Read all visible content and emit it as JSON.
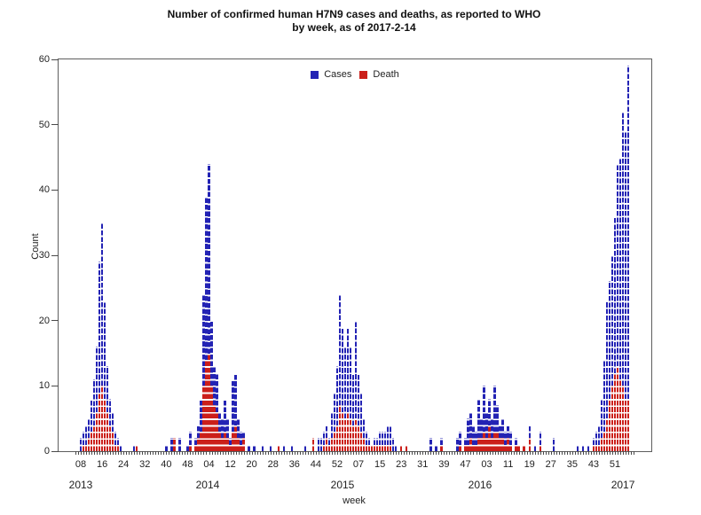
{
  "title": {
    "line1": "Number of confirmed human H7N9 cases and deaths, as reported to WHO",
    "line2": "by week, as of 2017-2-14"
  },
  "legend": {
    "items": [
      {
        "label": "Cases",
        "color": "#2323b4"
      },
      {
        "label": "Death",
        "color": "#cb1f1a"
      }
    ]
  },
  "colors": {
    "cases": "#2323b4",
    "deaths": "#cb1f1a",
    "frame": "#5e5e5e"
  },
  "chart_data": {
    "type": "bar",
    "stacked": true,
    "title": "Number of confirmed human H7N9 cases and deaths, as reported to WHO by week, as of 2017-2-14",
    "xlabel": "week",
    "ylabel": "Count",
    "ylim": [
      0,
      60
    ],
    "grid": false,
    "legend_position": "top-center",
    "unit": "1 box = 1 person; bar height = weekly confirmed cases, red bottom portion = deaths",
    "y_axis": {
      "label": "Count",
      "ticks": [
        0,
        10,
        20,
        30,
        40,
        50,
        60
      ]
    },
    "x_axis": {
      "label": "week",
      "first_week": "2013-06",
      "last_week": "2017-07",
      "ticks": [
        {
          "i": 2,
          "label": "08"
        },
        {
          "i": 10,
          "label": "16"
        },
        {
          "i": 18,
          "label": "24"
        },
        {
          "i": 26,
          "label": "32"
        },
        {
          "i": 34,
          "label": "40"
        },
        {
          "i": 42,
          "label": "48"
        },
        {
          "i": 50,
          "label": "04"
        },
        {
          "i": 58,
          "label": "12"
        },
        {
          "i": 66,
          "label": "20"
        },
        {
          "i": 74,
          "label": "28"
        },
        {
          "i": 82,
          "label": "36"
        },
        {
          "i": 90,
          "label": "44"
        },
        {
          "i": 98,
          "label": "52"
        },
        {
          "i": 106,
          "label": "07"
        },
        {
          "i": 114,
          "label": "15"
        },
        {
          "i": 122,
          "label": "23"
        },
        {
          "i": 130,
          "label": "31"
        },
        {
          "i": 138,
          "label": "39"
        },
        {
          "i": 146,
          "label": "47"
        },
        {
          "i": 154,
          "label": "03"
        },
        {
          "i": 162,
          "label": "11"
        },
        {
          "i": 170,
          "label": "19"
        },
        {
          "i": 178,
          "label": "27"
        },
        {
          "i": 186,
          "label": "35"
        },
        {
          "i": 194,
          "label": "43"
        },
        {
          "i": 202,
          "label": "51"
        }
      ],
      "years": [
        {
          "label": "2013",
          "week_index": 2
        },
        {
          "label": "2014",
          "week_index": 49.5
        },
        {
          "label": "2015",
          "week_index": 100
        },
        {
          "label": "2016",
          "week_index": 151.5
        },
        {
          "label": "2017",
          "week_index": 205
        }
      ]
    },
    "weeks": [
      {
        "week": "2013-08",
        "cases": 2,
        "deaths": 0
      },
      {
        "week": "2013-09",
        "cases": 3,
        "deaths": 1
      },
      {
        "week": "2013-10",
        "cases": 4,
        "deaths": 1
      },
      {
        "week": "2013-11",
        "cases": 5,
        "deaths": 2
      },
      {
        "week": "2013-12",
        "cases": 8,
        "deaths": 3
      },
      {
        "week": "2013-13",
        "cases": 11,
        "deaths": 4
      },
      {
        "week": "2013-14",
        "cases": 16,
        "deaths": 6
      },
      {
        "week": "2013-15",
        "cases": 29,
        "deaths": 9
      },
      {
        "week": "2013-16",
        "cases": 35,
        "deaths": 10
      },
      {
        "week": "2013-17",
        "cases": 23,
        "deaths": 8
      },
      {
        "week": "2013-18",
        "cases": 13,
        "deaths": 6
      },
      {
        "week": "2013-19",
        "cases": 8,
        "deaths": 4
      },
      {
        "week": "2013-20",
        "cases": 6,
        "deaths": 3
      },
      {
        "week": "2013-21",
        "cases": 3,
        "deaths": 1
      },
      {
        "week": "2013-22",
        "cases": 2,
        "deaths": 1
      },
      {
        "week": "2013-23",
        "cases": 1,
        "deaths": 0
      },
      {
        "week": "2013-28",
        "cases": 1,
        "deaths": 0
      },
      {
        "week": "2013-29",
        "cases": 1,
        "deaths": 1
      },
      {
        "week": "2013-40",
        "cases": 1,
        "deaths": 0
      },
      {
        "week": "2013-42",
        "cases": 2,
        "deaths": 0
      },
      {
        "week": "2013-43",
        "cases": 2,
        "deaths": 2
      },
      {
        "week": "2013-45",
        "cases": 2,
        "deaths": 0
      },
      {
        "week": "2013-48",
        "cases": 1,
        "deaths": 0
      },
      {
        "week": "2013-49",
        "cases": 3,
        "deaths": 1
      },
      {
        "week": "2013-51",
        "cases": 2,
        "deaths": 1
      },
      {
        "week": "2013-52",
        "cases": 4,
        "deaths": 2
      },
      {
        "week": "2014-01",
        "cases": 8,
        "deaths": 3
      },
      {
        "week": "2014-02",
        "cases": 24,
        "deaths": 10
      },
      {
        "week": "2014-03",
        "cases": 39,
        "deaths": 14
      },
      {
        "week": "2014-04",
        "cases": 44,
        "deaths": 15
      },
      {
        "week": "2014-05",
        "cases": 20,
        "deaths": 10
      },
      {
        "week": "2014-06",
        "cases": 13,
        "deaths": 7
      },
      {
        "week": "2014-07",
        "cases": 12,
        "deaths": 6
      },
      {
        "week": "2014-08",
        "cases": 6,
        "deaths": 3
      },
      {
        "week": "2014-09",
        "cases": 5,
        "deaths": 2
      },
      {
        "week": "2014-10",
        "cases": 8,
        "deaths": 3
      },
      {
        "week": "2014-11",
        "cases": 5,
        "deaths": 2
      },
      {
        "week": "2014-12",
        "cases": 2,
        "deaths": 1
      },
      {
        "week": "2014-13",
        "cases": 11,
        "deaths": 3
      },
      {
        "week": "2014-14",
        "cases": 12,
        "deaths": 4
      },
      {
        "week": "2014-15",
        "cases": 5,
        "deaths": 2
      },
      {
        "week": "2014-16",
        "cases": 3,
        "deaths": 1
      },
      {
        "week": "2014-17",
        "cases": 3,
        "deaths": 2
      },
      {
        "week": "2014-19",
        "cases": 1,
        "deaths": 0
      },
      {
        "week": "2014-21",
        "cases": 1,
        "deaths": 0
      },
      {
        "week": "2014-24",
        "cases": 1,
        "deaths": 0
      },
      {
        "week": "2014-27",
        "cases": 1,
        "deaths": 0
      },
      {
        "week": "2014-30",
        "cases": 1,
        "deaths": 1
      },
      {
        "week": "2014-32",
        "cases": 1,
        "deaths": 0
      },
      {
        "week": "2014-35",
        "cases": 1,
        "deaths": 0
      },
      {
        "week": "2014-40",
        "cases": 1,
        "deaths": 0
      },
      {
        "week": "2014-43",
        "cases": 2,
        "deaths": 2
      },
      {
        "week": "2014-45",
        "cases": 2,
        "deaths": 0
      },
      {
        "week": "2014-46",
        "cases": 2,
        "deaths": 0
      },
      {
        "week": "2014-47",
        "cases": 3,
        "deaths": 1
      },
      {
        "week": "2014-48",
        "cases": 4,
        "deaths": 2
      },
      {
        "week": "2014-49",
        "cases": 2,
        "deaths": 1
      },
      {
        "week": "2014-50",
        "cases": 6,
        "deaths": 2
      },
      {
        "week": "2014-51",
        "cases": 9,
        "deaths": 3
      },
      {
        "week": "2014-52",
        "cases": 13,
        "deaths": 4
      },
      {
        "week": "2015-01",
        "cases": 24,
        "deaths": 7
      },
      {
        "week": "2015-02",
        "cases": 19,
        "deaths": 6
      },
      {
        "week": "2015-03",
        "cases": 16,
        "deaths": 5
      },
      {
        "week": "2015-04",
        "cases": 19,
        "deaths": 6
      },
      {
        "week": "2015-05",
        "cases": 16,
        "deaths": 5
      },
      {
        "week": "2015-06",
        "cases": 12,
        "deaths": 4
      },
      {
        "week": "2015-07",
        "cases": 20,
        "deaths": 5
      },
      {
        "week": "2015-08",
        "cases": 12,
        "deaths": 4
      },
      {
        "week": "2015-09",
        "cases": 9,
        "deaths": 3
      },
      {
        "week": "2015-10",
        "cases": 5,
        "deaths": 2
      },
      {
        "week": "2015-11",
        "cases": 3,
        "deaths": 1
      },
      {
        "week": "2015-12",
        "cases": 2,
        "deaths": 1
      },
      {
        "week": "2015-13",
        "cases": 1,
        "deaths": 1
      },
      {
        "week": "2015-14",
        "cases": 2,
        "deaths": 1
      },
      {
        "week": "2015-15",
        "cases": 2,
        "deaths": 1
      },
      {
        "week": "2015-16",
        "cases": 3,
        "deaths": 1
      },
      {
        "week": "2015-17",
        "cases": 3,
        "deaths": 1
      },
      {
        "week": "2015-18",
        "cases": 3,
        "deaths": 1
      },
      {
        "week": "2015-19",
        "cases": 4,
        "deaths": 1
      },
      {
        "week": "2015-20",
        "cases": 4,
        "deaths": 1
      },
      {
        "week": "2015-21",
        "cases": 2,
        "deaths": 0
      },
      {
        "week": "2015-22",
        "cases": 1,
        "deaths": 0
      },
      {
        "week": "2015-24",
        "cases": 1,
        "deaths": 1
      },
      {
        "week": "2015-26",
        "cases": 1,
        "deaths": 1
      },
      {
        "week": "2015-35",
        "cases": 2,
        "deaths": 0
      },
      {
        "week": "2015-37",
        "cases": 1,
        "deaths": 0
      },
      {
        "week": "2015-39",
        "cases": 2,
        "deaths": 1
      },
      {
        "week": "2015-45",
        "cases": 2,
        "deaths": 0
      },
      {
        "week": "2015-46",
        "cases": 3,
        "deaths": 1
      },
      {
        "week": "2015-48",
        "cases": 2,
        "deaths": 1
      },
      {
        "week": "2015-49",
        "cases": 5,
        "deaths": 1
      },
      {
        "week": "2015-50",
        "cases": 6,
        "deaths": 2
      },
      {
        "week": "2015-51",
        "cases": 4,
        "deaths": 1
      },
      {
        "week": "2015-52",
        "cases": 3,
        "deaths": 1
      },
      {
        "week": "2016-01",
        "cases": 8,
        "deaths": 2
      },
      {
        "week": "2016-02",
        "cases": 5,
        "deaths": 2
      },
      {
        "week": "2016-03",
        "cases": 10,
        "deaths": 3
      },
      {
        "week": "2016-04",
        "cases": 6,
        "deaths": 2
      },
      {
        "week": "2016-05",
        "cases": 8,
        "deaths": 4
      },
      {
        "week": "2016-06",
        "cases": 5,
        "deaths": 2
      },
      {
        "week": "2016-07",
        "cases": 10,
        "deaths": 3
      },
      {
        "week": "2016-08",
        "cases": 7,
        "deaths": 3
      },
      {
        "week": "2016-09",
        "cases": 4,
        "deaths": 2
      },
      {
        "week": "2016-10",
        "cases": 5,
        "deaths": 2
      },
      {
        "week": "2016-11",
        "cases": 3,
        "deaths": 1
      },
      {
        "week": "2016-12",
        "cases": 4,
        "deaths": 2
      },
      {
        "week": "2016-13",
        "cases": 3,
        "deaths": 1
      },
      {
        "week": "2016-15",
        "cases": 2,
        "deaths": 1
      },
      {
        "week": "2016-16",
        "cases": 1,
        "deaths": 1
      },
      {
        "week": "2016-18",
        "cases": 1,
        "deaths": 1
      },
      {
        "week": "2016-20",
        "cases": 4,
        "deaths": 2
      },
      {
        "week": "2016-22",
        "cases": 1,
        "deaths": 0
      },
      {
        "week": "2016-24",
        "cases": 3,
        "deaths": 1
      },
      {
        "week": "2016-29",
        "cases": 2,
        "deaths": 0
      },
      {
        "week": "2016-38",
        "cases": 1,
        "deaths": 0
      },
      {
        "week": "2016-40",
        "cases": 1,
        "deaths": 0
      },
      {
        "week": "2016-42",
        "cases": 1,
        "deaths": 0
      },
      {
        "week": "2016-44",
        "cases": 2,
        "deaths": 1
      },
      {
        "week": "2016-45",
        "cases": 3,
        "deaths": 1
      },
      {
        "week": "2016-46",
        "cases": 4,
        "deaths": 1
      },
      {
        "week": "2016-47",
        "cases": 8,
        "deaths": 2
      },
      {
        "week": "2016-48",
        "cases": 14,
        "deaths": 3
      },
      {
        "week": "2016-49",
        "cases": 23,
        "deaths": 5
      },
      {
        "week": "2016-50",
        "cases": 26,
        "deaths": 8
      },
      {
        "week": "2016-51",
        "cases": 30,
        "deaths": 10
      },
      {
        "week": "2016-52",
        "cases": 36,
        "deaths": 12
      },
      {
        "week": "2017-01",
        "cases": 44,
        "deaths": 13
      },
      {
        "week": "2017-02",
        "cases": 45,
        "deaths": 11
      },
      {
        "week": "2017-03",
        "cases": 52,
        "deaths": 10
      },
      {
        "week": "2017-04",
        "cases": 49,
        "deaths": 8
      },
      {
        "week": "2017-05",
        "cases": 59,
        "deaths": 8
      }
    ]
  }
}
